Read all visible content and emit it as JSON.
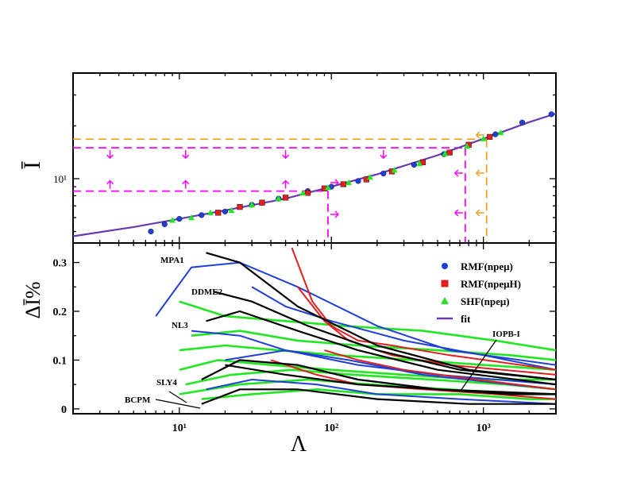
{
  "chart_data": [
    {
      "panel": "top",
      "type": "line",
      "ylabel": "Ī",
      "x_scale": "log",
      "y_scale": "log",
      "xlim": [
        2,
        3000
      ],
      "ylim": [
        4.3,
        40
      ],
      "y_tick_labels": [
        {
          "value": 10,
          "text": "10¹"
        }
      ],
      "grid": false,
      "fit": {
        "name": "fit",
        "color": "#6a3ab2",
        "x": [
          2,
          5,
          10,
          20,
          50,
          100,
          200,
          500,
          1000,
          2000,
          3000
        ],
        "y": [
          4.7,
          5.3,
          5.9,
          6.6,
          7.7,
          9.0,
          10.6,
          13.6,
          16.9,
          21.0,
          23.5
        ]
      },
      "series": [
        {
          "name": "RMF(npeμ)",
          "marker": "circle",
          "color": "#1f3fd6",
          "x": [
            6.5,
            8,
            10,
            14,
            20,
            30,
            45,
            70,
            100,
            150,
            220,
            350,
            550,
            800,
            1200,
            1800,
            2800
          ],
          "y": [
            5.0,
            5.5,
            5.9,
            6.2,
            6.5,
            7.1,
            7.7,
            8.5,
            9.0,
            9.7,
            10.7,
            12.0,
            13.8,
            15.6,
            17.9,
            20.9,
            23.3
          ]
        },
        {
          "name": "RMF(npeμH)",
          "marker": "square",
          "color": "#e02020",
          "x": [
            18,
            25,
            35,
            50,
            70,
            90,
            120,
            170,
            250,
            400,
            600,
            800,
            1100
          ],
          "y": [
            6.4,
            6.9,
            7.3,
            7.8,
            8.3,
            8.8,
            9.3,
            9.9,
            11.0,
            12.4,
            14.1,
            15.6,
            17.3
          ]
        },
        {
          "name": "SHF(npeμ)",
          "marker": "triangle",
          "color": "#22e622",
          "x": [
            9,
            12,
            16,
            22,
            30,
            45,
            65,
            95,
            130,
            180,
            260,
            380,
            560,
            780,
            1000,
            1300
          ],
          "y": [
            5.8,
            6.0,
            6.4,
            6.6,
            7.1,
            7.7,
            8.3,
            8.9,
            9.5,
            10.2,
            11.2,
            12.2,
            13.9,
            15.3,
            16.9,
            18.3
          ]
        }
      ],
      "bounds": [
        {
          "kind": "upper",
          "color": "#ff00ff",
          "style": "dashed",
          "y": 15.0,
          "x_end": 760,
          "arrows_at": [
            3.5,
            11,
            50,
            220
          ],
          "arrow_dir": "down"
        },
        {
          "kind": "lower",
          "color": "#ff00ff",
          "style": "dashed",
          "y": 8.5,
          "x_end": 95,
          "arrows_at": [
            3.5,
            11,
            50
          ],
          "arrow_dir": "up"
        },
        {
          "kind": "lambda_lower",
          "color": "#ff00ff",
          "style": "dashed",
          "x": 95,
          "y_range": [
            4.3,
            8.5
          ],
          "arrow_dir": "right"
        },
        {
          "kind": "lambda_upper",
          "color": "#ff00ff",
          "style": "dashed",
          "x": 760,
          "y_range": [
            4.3,
            15.0
          ],
          "arrow_dir": "left"
        },
        {
          "kind": "upper_alt",
          "color": "#f0a020",
          "style": "dashed",
          "y": 16.8,
          "x_end": 1050
        },
        {
          "kind": "lambda_alt",
          "color": "#f0a020",
          "style": "dashed",
          "x": 1050,
          "y_range": [
            4.3,
            16.8
          ],
          "arrow_dir": "left"
        }
      ]
    },
    {
      "panel": "bottom",
      "type": "line",
      "xlabel": "Λ",
      "ylabel": "ΔĪ%",
      "x_scale": "log",
      "xlim": [
        2,
        3000
      ],
      "ylim": [
        -0.01,
        0.34
      ],
      "x_tick_labels": [
        {
          "value": 10,
          "text": "10¹"
        },
        {
          "value": 100,
          "text": "10²"
        },
        {
          "value": 1000,
          "text": "10³"
        }
      ],
      "y_ticks": [
        0,
        0.1,
        0.2,
        0.3
      ],
      "y_tick_labels": [
        "0",
        "0.1",
        "0.2",
        "0.3"
      ],
      "grid": false,
      "legend": {
        "position": "top-right",
        "entries": [
          {
            "label": "RMF(npeμ)",
            "marker": "circle",
            "color": "#1f3fd6"
          },
          {
            "label": "RMF(npeμH)",
            "marker": "square",
            "color": "#e02020"
          },
          {
            "label": "SHF(npeμ)",
            "marker": "triangle",
            "color": "#22e622"
          },
          {
            "label": "fit",
            "marker": "line",
            "color": "#6a3ab2"
          }
        ]
      },
      "annotations": [
        "MPA1",
        "DDME2",
        "NL3",
        "SLY4",
        "BCPM",
        "IOPB-I"
      ],
      "series": [
        {
          "name": "RMF(npeμ)",
          "color": "#1f3fd6",
          "lines": [
            {
              "x": [
                7,
                12,
                25,
                60,
                200,
                600,
                3000
              ],
              "y": [
                0.19,
                0.29,
                0.3,
                0.25,
                0.17,
                0.12,
                0.09
              ]
            },
            {
              "x": [
                12,
                25,
                50,
                150,
                500,
                3000
              ],
              "y": [
                0.16,
                0.15,
                0.12,
                0.09,
                0.07,
                0.05
              ]
            },
            {
              "x": [
                30,
                50,
                100,
                300,
                1000,
                3000
              ],
              "y": [
                0.25,
                0.21,
                0.18,
                0.14,
                0.11,
                0.08
              ]
            },
            {
              "x": [
                15,
                30,
                80,
                200,
                700,
                3000
              ],
              "y": [
                0.04,
                0.06,
                0.05,
                0.03,
                0.02,
                0.01
              ]
            },
            {
              "x": [
                20,
                50,
                130,
                400,
                1500,
                3000
              ],
              "y": [
                0.1,
                0.12,
                0.1,
                0.07,
                0.05,
                0.04
              ]
            }
          ]
        },
        {
          "name": "RMF(npeμH)",
          "color": "#e02020",
          "lines": [
            {
              "x": [
                55,
                75,
                100,
                150,
                250,
                600,
                3000
              ],
              "y": [
                0.33,
                0.22,
                0.17,
                0.14,
                0.13,
                0.11,
                0.08
              ]
            },
            {
              "x": [
                60,
                90,
                130,
                250,
                600,
                3000
              ],
              "y": [
                0.25,
                0.18,
                0.14,
                0.11,
                0.09,
                0.07
              ]
            },
            {
              "x": [
                40,
                80,
                150,
                400,
                1200,
                3000
              ],
              "y": [
                0.1,
                0.07,
                0.05,
                0.04,
                0.03,
                0.02
              ]
            },
            {
              "x": [
                90,
                150,
                300,
                900,
                3000
              ],
              "y": [
                0.12,
                0.1,
                0.08,
                0.06,
                0.04
              ]
            }
          ]
        },
        {
          "name": "SHF(npeμ)",
          "color": "#22e622",
          "lines": [
            {
              "x": [
                10,
                20,
                50,
                120,
                400,
                1200,
                3000
              ],
              "y": [
                0.22,
                0.19,
                0.18,
                0.17,
                0.16,
                0.14,
                0.12
              ]
            },
            {
              "x": [
                12,
                25,
                60,
                150,
                500,
                1500,
                3000
              ],
              "y": [
                0.15,
                0.16,
                0.14,
                0.13,
                0.12,
                0.11,
                0.1
              ]
            },
            {
              "x": [
                10,
                20,
                45,
                110,
                350,
                1000,
                3000
              ],
              "y": [
                0.12,
                0.13,
                0.12,
                0.11,
                0.1,
                0.09,
                0.08
              ]
            },
            {
              "x": [
                10,
                18,
                40,
                100,
                300,
                900,
                3000
              ],
              "y": [
                0.08,
                0.1,
                0.09,
                0.08,
                0.07,
                0.06,
                0.06
              ]
            },
            {
              "x": [
                11,
                22,
                55,
                140,
                450,
                1400,
                3000
              ],
              "y": [
                0.05,
                0.07,
                0.08,
                0.07,
                0.06,
                0.05,
                0.04
              ]
            },
            {
              "x": [
                10,
                25,
                70,
                180,
                600,
                1800,
                3000
              ],
              "y": [
                0.03,
                0.05,
                0.06,
                0.05,
                0.04,
                0.03,
                0.03
              ]
            },
            {
              "x": [
                14,
                30,
                80,
                200,
                700,
                2000,
                3000
              ],
              "y": [
                0.02,
                0.03,
                0.04,
                0.03,
                0.03,
                0.02,
                0.02
              ]
            }
          ]
        },
        {
          "name": "fit",
          "color": "#000000",
          "labelled_lines": [
            {
              "label": "MPA1",
              "x": [
                15,
                25,
                60,
                200,
                800,
                3000
              ],
              "y": [
                0.32,
                0.3,
                0.21,
                0.13,
                0.08,
                0.06
              ]
            },
            {
              "label": "DDME2",
              "x": [
                17,
                30,
                70,
                200,
                700,
                3000
              ],
              "y": [
                0.24,
                0.22,
                0.17,
                0.12,
                0.08,
                0.06
              ]
            },
            {
              "label": "NL3",
              "x": [
                15,
                25,
                60,
                150,
                500,
                3000
              ],
              "y": [
                0.18,
                0.2,
                0.16,
                0.12,
                0.08,
                0.05
              ]
            },
            {
              "label": "SLY4",
              "x": [
                14,
                25,
                60,
                150,
                500,
                3000
              ],
              "y": [
                0.06,
                0.1,
                0.09,
                0.06,
                0.04,
                0.03
              ]
            },
            {
              "label": "BCPM",
              "x": [
                14,
                25,
                60,
                200,
                800,
                3000
              ],
              "y": [
                0.01,
                0.04,
                0.04,
                0.02,
                0.01,
                0.01
              ]
            },
            {
              "label": "IOPB-I",
              "x": [
                20,
                50,
                150,
                500,
                1500,
                3000
              ],
              "y": [
                0.09,
                0.07,
                0.05,
                0.04,
                0.03,
                0.03
              ]
            }
          ]
        }
      ]
    }
  ]
}
